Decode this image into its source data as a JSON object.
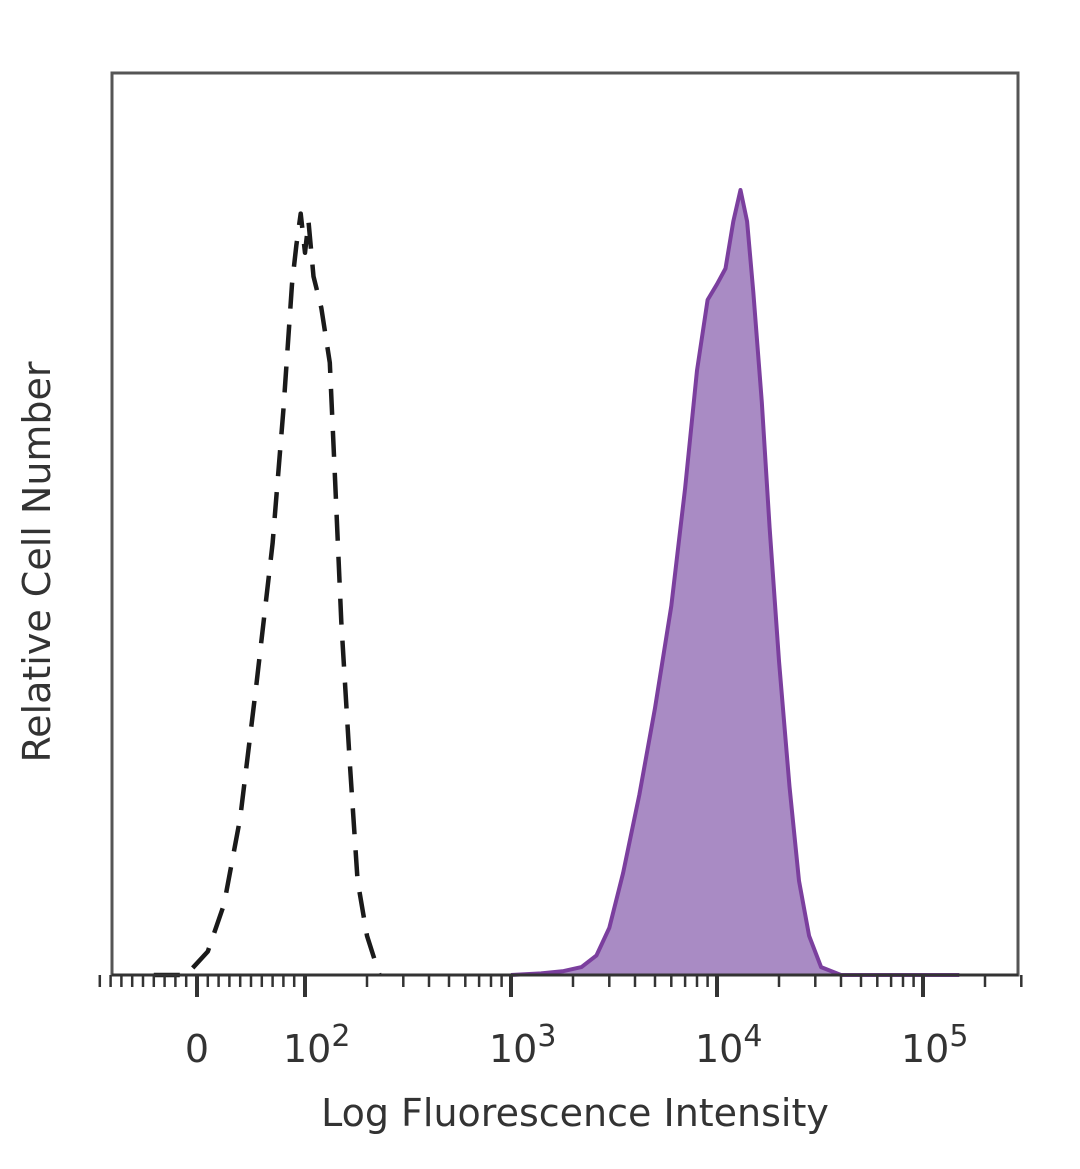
{
  "chart_data": {
    "type": "area",
    "title": "",
    "xlabel": "Log Fluorescence Intensity",
    "ylabel": "Relative Cell Number",
    "x_scale": "biexponential (log above 10^2, linear near 0)",
    "x_ticks": [
      {
        "value": 0,
        "base": "0",
        "exp": ""
      },
      {
        "value": 100,
        "base": "10",
        "exp": "2"
      },
      {
        "value": 1000,
        "base": "10",
        "exp": "3"
      },
      {
        "value": 10000,
        "base": "10",
        "exp": "4"
      },
      {
        "value": 100000,
        "base": "10",
        "exp": "5"
      }
    ],
    "y_ticks": [],
    "ylim": [
      0,
      1
    ],
    "grid": false,
    "legend": "none",
    "series": [
      {
        "style": "dashed-outline",
        "color": "#1a1a1a",
        "points": [
          [
            -40,
            0.0
          ],
          [
            -10,
            0.0
          ],
          [
            10,
            0.03
          ],
          [
            25,
            0.09
          ],
          [
            40,
            0.2
          ],
          [
            55,
            0.37
          ],
          [
            70,
            0.55
          ],
          [
            80,
            0.72
          ],
          [
            88,
            0.88
          ],
          [
            92,
            0.93
          ],
          [
            96,
            0.97
          ],
          [
            100,
            0.92
          ],
          [
            104,
            0.96
          ],
          [
            110,
            0.89
          ],
          [
            120,
            0.85
          ],
          [
            132,
            0.78
          ],
          [
            140,
            0.63
          ],
          [
            150,
            0.45
          ],
          [
            165,
            0.27
          ],
          [
            180,
            0.12
          ],
          [
            200,
            0.05
          ],
          [
            230,
            0.0
          ]
        ]
      },
      {
        "style": "filled",
        "color": "#7b3f9e",
        "fill": "#a98bc4",
        "points": [
          [
            1000,
            0.0
          ],
          [
            1400,
            0.002
          ],
          [
            1800,
            0.005
          ],
          [
            2200,
            0.01
          ],
          [
            2600,
            0.025
          ],
          [
            3000,
            0.06
          ],
          [
            3500,
            0.13
          ],
          [
            4200,
            0.23
          ],
          [
            5000,
            0.34
          ],
          [
            6000,
            0.47
          ],
          [
            7000,
            0.62
          ],
          [
            8000,
            0.77
          ],
          [
            9000,
            0.86
          ],
          [
            10000,
            0.88
          ],
          [
            11000,
            0.9
          ],
          [
            12000,
            0.96
          ],
          [
            13000,
            1.0
          ],
          [
            14000,
            0.96
          ],
          [
            15000,
            0.87
          ],
          [
            16500,
            0.73
          ],
          [
            18000,
            0.57
          ],
          [
            20000,
            0.4
          ],
          [
            22500,
            0.24
          ],
          [
            25000,
            0.12
          ],
          [
            28000,
            0.05
          ],
          [
            32000,
            0.01
          ],
          [
            40000,
            0.0
          ],
          [
            150000,
            0.0
          ]
        ]
      }
    ]
  }
}
